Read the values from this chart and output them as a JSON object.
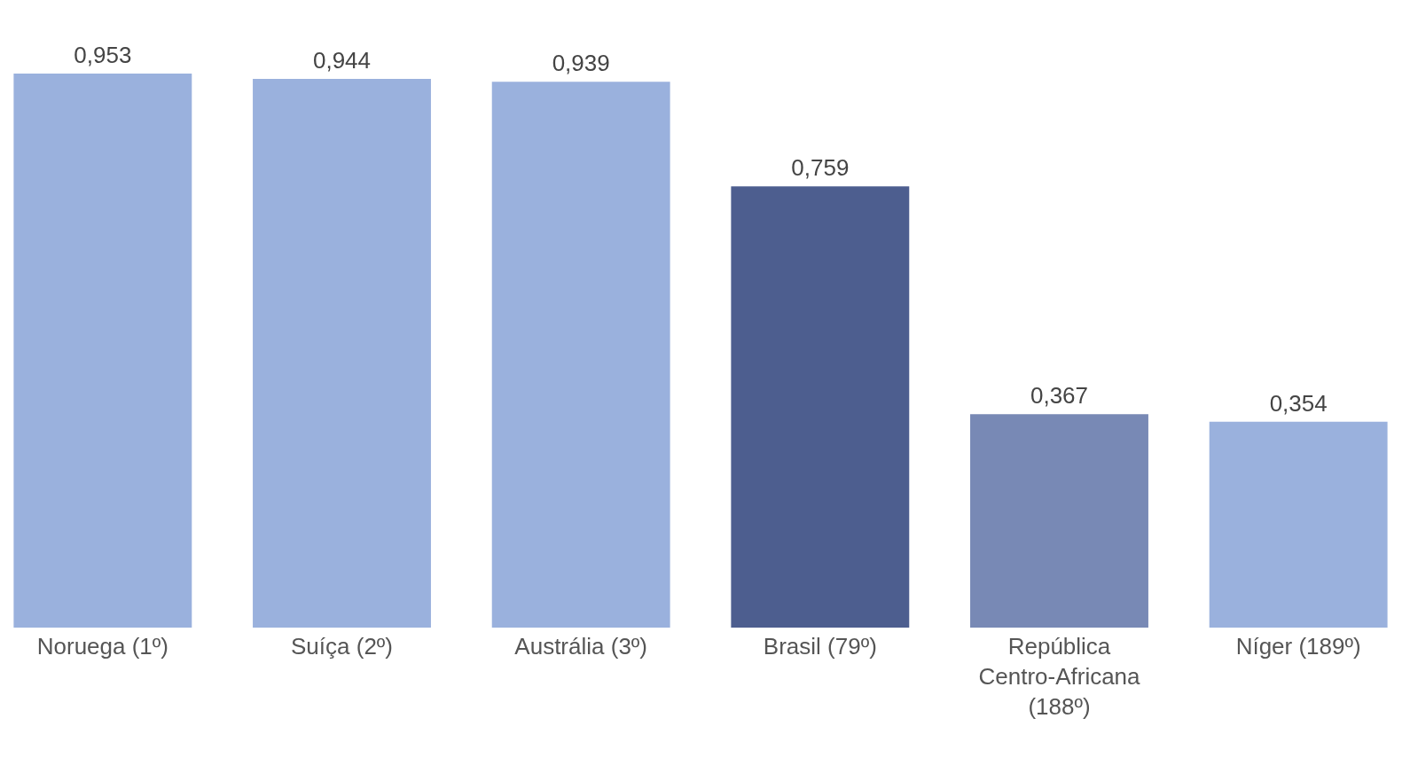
{
  "chart_data": {
    "type": "bar",
    "categories": [
      "Noruega (1º)",
      "Suíça (2º)",
      "Austrália (3º)",
      "Brasil (79º)",
      "República Centro-Africana (188º)",
      "Níger (189º)"
    ],
    "values": [
      0.953,
      0.944,
      0.939,
      0.759,
      0.367,
      0.354
    ],
    "colors": [
      "#9ab1dd",
      "#9ab1dd",
      "#9ab1dd",
      "#4d5e8f",
      "#7889b5",
      "#9ab1dd"
    ],
    "value_labels": [
      "0,953",
      "0,944",
      "0,939",
      "0,759",
      "0,367",
      "0,354"
    ]
  }
}
